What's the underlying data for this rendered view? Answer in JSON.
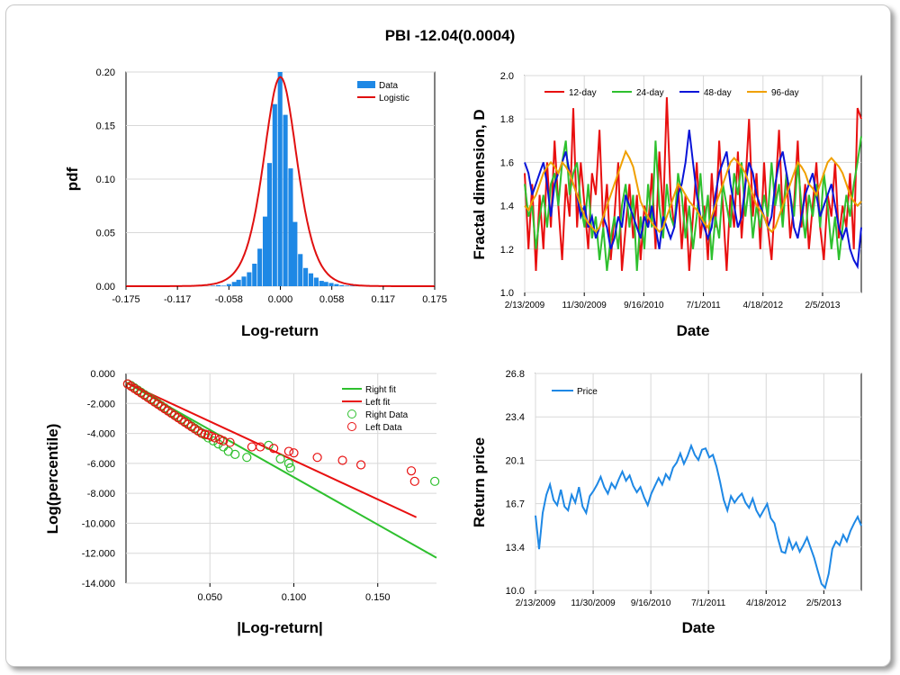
{
  "title": "PBI -12.04(0.0004)",
  "chart_data": [
    {
      "id": "pdf",
      "type": "bar",
      "xlabel": "Log-return",
      "ylabel": "pdf",
      "xlim": [
        -0.175,
        0.175
      ],
      "ylim": [
        0,
        0.2
      ],
      "xticks": [
        "-0.175",
        "-0.117",
        "-0.058",
        "0.000",
        "0.058",
        "0.117",
        "0.175"
      ],
      "yticks": [
        "0.00",
        "0.05",
        "0.10",
        "0.15",
        "0.20"
      ],
      "legend": [
        {
          "name": "Data",
          "color": "#1e88e5"
        },
        {
          "name": "Logistic",
          "color": "#e01010"
        }
      ],
      "bins": {
        "x": [
          -0.13,
          -0.123,
          -0.117,
          -0.111,
          -0.105,
          -0.099,
          -0.093,
          -0.088,
          -0.082,
          -0.076,
          -0.07,
          -0.064,
          -0.058,
          -0.052,
          -0.047,
          -0.041,
          -0.035,
          -0.029,
          -0.023,
          -0.017,
          -0.012,
          -0.006,
          0.0,
          0.006,
          0.012,
          0.017,
          0.023,
          0.029,
          0.035,
          0.041,
          0.047,
          0.052,
          0.058,
          0.064,
          0.07,
          0.076,
          0.082,
          0.088,
          0.093,
          0.099
        ],
        "values": [
          0.0005,
          0.0005,
          0.0005,
          0.0,
          0.0005,
          0.0,
          0.0005,
          0.0,
          0.0,
          0.0005,
          0.001,
          0.0005,
          0.002,
          0.004,
          0.006,
          0.009,
          0.013,
          0.021,
          0.035,
          0.065,
          0.115,
          0.17,
          0.2,
          0.16,
          0.11,
          0.06,
          0.03,
          0.017,
          0.012,
          0.008,
          0.005,
          0.004,
          0.003,
          0.002,
          0.001,
          0.0005,
          0.0005,
          0.0005,
          0.0005,
          0.001
        ]
      },
      "logistic": {
        "mu": 0.0,
        "s": 0.0128
      }
    },
    {
      "id": "fractal",
      "type": "line",
      "xlabel": "Date",
      "ylabel": "Fractal dimension, D",
      "ylim": [
        1.0,
        2.0
      ],
      "xticks": [
        "2/13/2009",
        "11/30/2009",
        "9/16/2010",
        "7/1/2011",
        "4/18/2012",
        "2/5/2013"
      ],
      "yticks": [
        "1.0",
        "1.2",
        "1.4",
        "1.6",
        "1.8",
        "2.0"
      ],
      "series": [
        {
          "name": "12-day",
          "color": "#e81010",
          "values": [
            1.55,
            1.2,
            1.5,
            1.1,
            1.45,
            1.2,
            1.6,
            1.3,
            1.7,
            1.4,
            1.15,
            1.5,
            1.35,
            1.85,
            1.3,
            1.6,
            1.4,
            1.2,
            1.55,
            1.45,
            1.75,
            1.3,
            1.5,
            1.15,
            1.35,
            1.6,
            1.1,
            1.3,
            1.5,
            1.25,
            1.45,
            1.15,
            1.4,
            1.3,
            1.55,
            1.2,
            1.65,
            1.35,
            1.9,
            1.45,
            1.3,
            1.5,
            1.2,
            1.45,
            1.1,
            1.35,
            1.6,
            1.25,
            1.4,
            1.15,
            1.55,
            1.3,
            1.7,
            1.4,
            1.1,
            1.45,
            1.3,
            1.65,
            1.25,
            1.5,
            1.8,
            1.35,
            1.55,
            1.2,
            1.6,
            1.3,
            1.15,
            1.45,
            1.75,
            1.35,
            1.55,
            1.25,
            1.4,
            1.7,
            1.3,
            1.5,
            1.2,
            1.4,
            1.6,
            1.3,
            1.15,
            1.45,
            1.35,
            1.6,
            1.25,
            1.4,
            1.3,
            1.55,
            1.2,
            1.85,
            1.8
          ]
        },
        {
          "name": "24-day",
          "color": "#2ec02e",
          "values": [
            1.5,
            1.35,
            1.4,
            1.2,
            1.35,
            1.45,
            1.3,
            1.5,
            1.55,
            1.4,
            1.6,
            1.7,
            1.45,
            1.55,
            1.6,
            1.4,
            1.3,
            1.5,
            1.25,
            1.35,
            1.15,
            1.3,
            1.1,
            1.25,
            1.35,
            1.2,
            1.4,
            1.5,
            1.3,
            1.45,
            1.1,
            1.35,
            1.2,
            1.5,
            1.3,
            1.7,
            1.4,
            1.25,
            1.5,
            1.35,
            1.3,
            1.55,
            1.45,
            1.25,
            1.4,
            1.2,
            1.35,
            1.55,
            1.3,
            1.45,
            1.15,
            1.35,
            1.25,
            1.5,
            1.4,
            1.3,
            1.55,
            1.45,
            1.6,
            1.35,
            1.5,
            1.25,
            1.4,
            1.3,
            1.45,
            1.35,
            1.6,
            1.4,
            1.5,
            1.3,
            1.55,
            1.45,
            1.35,
            1.6,
            1.4,
            1.25,
            1.45,
            1.35,
            1.5,
            1.3,
            1.55,
            1.4,
            1.2,
            1.35,
            1.15,
            1.3,
            1.45,
            1.35,
            1.5,
            1.6,
            1.72
          ]
        },
        {
          "name": "48-day",
          "color": "#0a14d8",
          "values": [
            1.6,
            1.55,
            1.45,
            1.5,
            1.55,
            1.6,
            1.5,
            1.35,
            1.5,
            1.55,
            1.6,
            1.65,
            1.55,
            1.5,
            1.45,
            1.35,
            1.4,
            1.3,
            1.35,
            1.25,
            1.3,
            1.35,
            1.3,
            1.2,
            1.25,
            1.35,
            1.3,
            1.45,
            1.4,
            1.35,
            1.3,
            1.25,
            1.35,
            1.3,
            1.4,
            1.3,
            1.2,
            1.35,
            1.3,
            1.25,
            1.3,
            1.45,
            1.5,
            1.6,
            1.75,
            1.6,
            1.45,
            1.35,
            1.3,
            1.25,
            1.3,
            1.45,
            1.55,
            1.6,
            1.65,
            1.5,
            1.4,
            1.3,
            1.35,
            1.5,
            1.6,
            1.55,
            1.45,
            1.4,
            1.35,
            1.3,
            1.35,
            1.5,
            1.6,
            1.65,
            1.55,
            1.45,
            1.3,
            1.25,
            1.35,
            1.45,
            1.5,
            1.55,
            1.45,
            1.35,
            1.4,
            1.45,
            1.5,
            1.4,
            1.3,
            1.25,
            1.3,
            1.2,
            1.15,
            1.12,
            1.3
          ]
        },
        {
          "name": "96-day",
          "color": "#f0a000",
          "values": [
            1.4,
            1.38,
            1.42,
            1.45,
            1.5,
            1.55,
            1.58,
            1.6,
            1.58,
            1.55,
            1.6,
            1.58,
            1.55,
            1.5,
            1.45,
            1.4,
            1.35,
            1.32,
            1.3,
            1.28,
            1.3,
            1.35,
            1.4,
            1.45,
            1.5,
            1.55,
            1.6,
            1.65,
            1.62,
            1.58,
            1.5,
            1.42,
            1.38,
            1.35,
            1.32,
            1.3,
            1.28,
            1.3,
            1.35,
            1.4,
            1.45,
            1.5,
            1.48,
            1.45,
            1.42,
            1.4,
            1.38,
            1.35,
            1.32,
            1.3,
            1.35,
            1.4,
            1.45,
            1.5,
            1.55,
            1.6,
            1.62,
            1.6,
            1.58,
            1.55,
            1.5,
            1.45,
            1.4,
            1.38,
            1.35,
            1.3,
            1.28,
            1.3,
            1.35,
            1.4,
            1.45,
            1.5,
            1.55,
            1.6,
            1.58,
            1.55,
            1.5,
            1.48,
            1.45,
            1.5,
            1.55,
            1.6,
            1.62,
            1.6,
            1.58,
            1.55,
            1.5,
            1.45,
            1.42,
            1.4,
            1.42
          ]
        }
      ]
    },
    {
      "id": "tail",
      "type": "scatter",
      "xlabel": "|Log-return|",
      "ylabel": "Log(percentile)",
      "xlim": [
        0,
        0.185
      ],
      "ylim": [
        -14,
        0
      ],
      "xticks": [
        "0.050",
        "0.100",
        "0.150"
      ],
      "yticks": [
        "0.000",
        "-2.000",
        "-4.000",
        "-6.000",
        "-8.000",
        "-10.000",
        "-12.000",
        "-14.000"
      ],
      "legend": [
        {
          "name": "Right fit",
          "color": "#2ec02e"
        },
        {
          "name": "Left fit",
          "color": "#e81010"
        },
        {
          "name": "Right Data",
          "color": "#2ec02e"
        },
        {
          "name": "Left Data",
          "color": "#e81010"
        }
      ],
      "right_fit": {
        "x": [
          0.0,
          0.185
        ],
        "y": [
          -0.6,
          -12.3
        ]
      },
      "left_fit": {
        "x": [
          0.0,
          0.173
        ],
        "y": [
          -0.6,
          -9.6
        ]
      },
      "right_data": {
        "x": [
          0.001,
          0.003,
          0.005,
          0.007,
          0.009,
          0.011,
          0.013,
          0.015,
          0.017,
          0.019,
          0.021,
          0.023,
          0.025,
          0.027,
          0.029,
          0.031,
          0.033,
          0.035,
          0.037,
          0.039,
          0.041,
          0.043,
          0.045,
          0.047,
          0.049,
          0.052,
          0.055,
          0.058,
          0.061,
          0.065,
          0.072,
          0.085,
          0.092,
          0.097,
          0.098,
          0.184
        ],
        "y": [
          -0.7,
          -0.8,
          -0.95,
          -1.1,
          -1.25,
          -1.4,
          -1.55,
          -1.7,
          -1.85,
          -2.0,
          -2.15,
          -2.3,
          -2.45,
          -2.6,
          -2.75,
          -2.9,
          -3.05,
          -3.2,
          -3.35,
          -3.5,
          -3.65,
          -3.8,
          -3.95,
          -4.1,
          -4.3,
          -4.5,
          -4.7,
          -4.9,
          -5.2,
          -5.4,
          -5.6,
          -4.8,
          -5.7,
          -6.0,
          -6.3,
          -7.2
        ]
      },
      "left_data": {
        "x": [
          0.001,
          0.003,
          0.005,
          0.007,
          0.009,
          0.011,
          0.013,
          0.015,
          0.017,
          0.019,
          0.021,
          0.023,
          0.025,
          0.027,
          0.029,
          0.031,
          0.033,
          0.035,
          0.037,
          0.039,
          0.041,
          0.043,
          0.045,
          0.047,
          0.049,
          0.051,
          0.053,
          0.056,
          0.058,
          0.062,
          0.075,
          0.08,
          0.088,
          0.097,
          0.1,
          0.114,
          0.129,
          0.14,
          0.17,
          0.172
        ],
        "y": [
          -0.7,
          -0.85,
          -1.0,
          -1.15,
          -1.3,
          -1.45,
          -1.6,
          -1.75,
          -1.9,
          -2.05,
          -2.2,
          -2.35,
          -2.5,
          -2.65,
          -2.8,
          -2.95,
          -3.1,
          -3.25,
          -3.4,
          -3.55,
          -3.7,
          -3.85,
          -4.0,
          -4.05,
          -4.1,
          -4.2,
          -4.3,
          -4.4,
          -4.5,
          -4.6,
          -4.9,
          -4.9,
          -5.0,
          -5.2,
          -5.3,
          -5.6,
          -5.8,
          -6.1,
          -6.5,
          -7.2
        ]
      }
    },
    {
      "id": "price",
      "type": "line",
      "xlabel": "Date",
      "ylabel": "Return price",
      "ylim": [
        10.0,
        26.8
      ],
      "xticks": [
        "2/13/2009",
        "11/30/2009",
        "9/16/2010",
        "7/1/2011",
        "4/18/2012",
        "2/5/2013"
      ],
      "yticks": [
        "10.0",
        "13.4",
        "16.7",
        "20.1",
        "23.4",
        "26.8"
      ],
      "legend": [
        {
          "name": "Price",
          "color": "#1e88e5"
        }
      ],
      "series": [
        {
          "name": "Price",
          "color": "#1e88e5",
          "values": [
            15.8,
            13.2,
            16.0,
            17.4,
            18.2,
            17.0,
            16.6,
            17.8,
            16.5,
            16.2,
            17.4,
            16.8,
            18.0,
            16.5,
            16.0,
            17.3,
            17.7,
            18.2,
            18.8,
            18.0,
            17.5,
            18.3,
            17.9,
            18.6,
            19.2,
            18.5,
            18.9,
            18.1,
            17.6,
            18.0,
            17.2,
            16.6,
            17.5,
            18.1,
            18.7,
            18.2,
            19.0,
            18.6,
            19.5,
            19.9,
            20.6,
            19.8,
            20.4,
            21.2,
            20.5,
            20.1,
            20.9,
            21.0,
            20.3,
            20.5,
            19.6,
            18.4,
            17.0,
            16.2,
            17.3,
            16.8,
            17.2,
            17.5,
            16.8,
            16.4,
            17.1,
            16.2,
            15.7,
            16.2,
            16.7,
            15.6,
            15.2,
            14.0,
            13.0,
            12.9,
            14.0,
            13.2,
            13.7,
            13.0,
            13.5,
            14.1,
            13.3,
            12.5,
            11.5,
            10.5,
            10.2,
            11.3,
            13.2,
            13.8,
            13.5,
            14.3,
            13.8,
            14.6,
            15.2,
            15.7,
            15.0
          ]
        }
      ]
    }
  ]
}
